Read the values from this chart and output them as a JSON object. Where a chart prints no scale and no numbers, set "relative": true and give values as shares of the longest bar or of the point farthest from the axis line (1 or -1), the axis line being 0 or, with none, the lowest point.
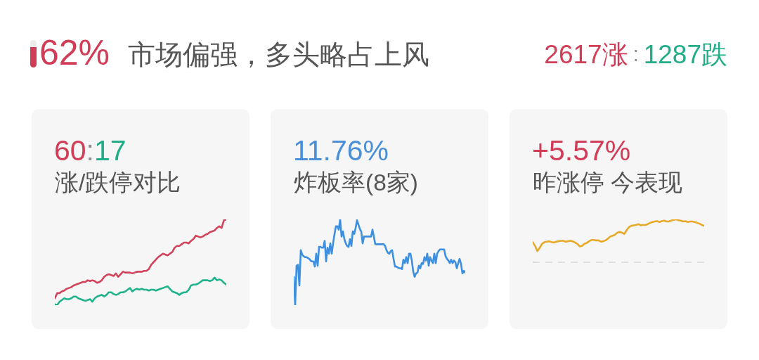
{
  "chart_data": [
    {
      "type": "other",
      "title": "市场偏强，多头略占上风",
      "annotations": [
        "62%",
        "2617涨",
        ":",
        "1287跌"
      ]
    },
    {
      "type": "line",
      "title": "涨/跌停对比",
      "annotations": [
        "60",
        ":",
        "17"
      ],
      "relative": true,
      "categories": [
        null,
        null,
        null,
        null,
        null,
        null,
        null,
        null,
        null,
        null,
        null,
        null,
        null,
        null,
        null,
        null,
        null,
        null,
        null,
        null,
        null,
        null,
        null,
        null,
        null,
        null,
        null,
        null,
        null,
        null,
        null,
        null,
        null,
        null,
        null,
        null,
        null,
        null,
        null,
        null,
        null,
        null,
        null,
        null,
        null,
        null,
        null,
        null,
        null,
        null,
        null,
        null,
        null,
        null,
        null,
        null,
        null,
        null,
        null,
        null,
        null,
        null,
        null,
        null,
        null,
        null,
        null,
        null,
        null,
        null,
        null,
        null,
        null,
        null
      ],
      "series": [
        {
          "color": "#d2435c",
          "values": [
            0.08,
            0.14,
            0.14,
            0.16,
            0.17,
            0.19,
            0.2,
            0.21,
            0.23,
            0.24,
            0.25,
            0.26,
            0.27,
            0.27,
            0.29,
            0.28,
            0.29,
            0.28,
            0.26,
            0.27,
            0.29,
            0.33,
            0.35,
            0.36,
            0.35,
            0.34,
            0.37,
            0.33,
            0.36,
            0.39,
            0.38,
            0.38,
            0.38,
            0.37,
            0.38,
            0.39,
            0.39,
            0.39,
            0.4,
            0.4,
            0.42,
            0.47,
            0.5,
            0.53,
            0.56,
            0.58,
            0.6,
            0.59,
            0.58,
            0.6,
            0.62,
            0.67,
            0.69,
            0.69,
            0.71,
            0.73,
            0.73,
            0.72,
            0.75,
            0.77,
            0.81,
            0.8,
            0.79,
            0.8,
            0.82,
            0.83,
            0.85,
            0.86,
            0.87,
            0.9,
            0.92,
            0.9,
            0.99,
            1.0
          ]
        },
        {
          "color": "#1fb28b",
          "values": [
            0.01,
            0.0,
            0.04,
            0.06,
            0.08,
            0.07,
            0.07,
            0.08,
            0.1,
            0.1,
            0.08,
            0.07,
            0.06,
            0.05,
            0.06,
            0.07,
            0.04,
            0.08,
            0.1,
            0.11,
            0.12,
            0.1,
            0.12,
            0.15,
            0.15,
            0.13,
            0.12,
            0.13,
            0.15,
            0.15,
            0.16,
            0.18,
            0.2,
            0.16,
            0.18,
            0.19,
            0.18,
            0.19,
            0.18,
            0.18,
            0.17,
            0.18,
            0.18,
            0.17,
            0.18,
            0.19,
            0.2,
            0.21,
            0.22,
            0.19,
            0.16,
            0.15,
            0.14,
            0.12,
            0.14,
            0.15,
            0.15,
            0.18,
            0.23,
            0.24,
            0.24,
            0.25,
            0.27,
            0.29,
            0.29,
            0.29,
            0.28,
            0.29,
            0.32,
            0.29,
            0.3,
            0.29,
            0.26,
            0.24
          ]
        }
      ]
    },
    {
      "type": "line",
      "title": "炸板率(8家)",
      "annotations": [
        "11.76%"
      ],
      "relative": true,
      "categories": [
        null,
        null,
        null,
        null,
        null,
        null,
        null,
        null,
        null,
        null,
        null,
        null,
        null,
        null,
        null,
        null,
        null,
        null,
        null,
        null,
        null,
        null,
        null,
        null,
        null,
        null,
        null,
        null,
        null,
        null,
        null,
        null,
        null,
        null,
        null,
        null,
        null,
        null,
        null,
        null,
        null,
        null,
        null,
        null,
        null,
        null,
        null,
        null,
        null,
        null,
        null,
        null,
        null,
        null,
        null,
        null,
        null,
        null,
        null,
        null,
        null,
        null,
        null,
        null,
        null,
        null,
        null,
        null,
        null,
        null,
        null,
        null,
        null,
        null,
        null,
        null,
        null,
        null,
        null,
        null,
        null,
        null,
        null,
        null,
        null,
        null,
        null,
        null,
        null,
        null,
        null,
        null,
        null,
        null,
        null,
        null,
        null,
        null,
        null,
        null,
        null,
        null,
        null,
        null,
        null,
        null,
        null,
        null,
        null,
        null,
        null,
        null,
        null,
        null,
        null,
        null,
        null,
        null,
        null,
        null,
        null,
        null,
        null
      ],
      "series": [
        {
          "color": "#3d8fe0",
          "values": [
            0.33,
            0.0,
            0.46,
            0.47,
            0.23,
            0.64,
            0.59,
            0.57,
            0.56,
            0.56,
            0.55,
            0.54,
            0.52,
            0.51,
            0.51,
            0.45,
            0.6,
            0.46,
            0.68,
            0.68,
            0.67,
            0.67,
            0.75,
            0.51,
            0.67,
            0.6,
            0.72,
            0.6,
            0.72,
            0.83,
            0.92,
            0.92,
            0.88,
            1.0,
            0.8,
            0.86,
            0.77,
            0.72,
            0.69,
            0.68,
            0.77,
            0.69,
            0.86,
            0.83,
            0.9,
            0.99,
            0.94,
            0.89,
            0.86,
            0.72,
            0.8,
            0.8,
            0.8,
            0.8,
            0.8,
            0.8,
            0.88,
            0.8,
            0.71,
            0.71,
            0.71,
            0.71,
            0.71,
            0.71,
            0.71,
            0.69,
            0.64,
            0.61,
            0.6,
            0.63,
            0.64,
            0.54,
            0.45,
            0.45,
            0.44,
            0.43,
            0.43,
            0.42,
            0.53,
            0.49,
            0.56,
            0.49,
            0.6,
            0.6,
            0.52,
            0.39,
            0.33,
            0.37,
            0.38,
            0.46,
            0.43,
            0.49,
            0.48,
            0.56,
            0.52,
            0.6,
            0.46,
            0.56,
            0.52,
            0.49,
            0.6,
            0.49,
            0.6,
            0.63,
            0.65,
            0.65,
            0.65,
            0.65,
            0.57,
            0.54,
            0.52,
            0.49,
            0.53,
            0.49,
            0.52,
            0.5,
            0.43,
            0.49,
            0.54,
            0.48,
            0.37,
            0.4,
            0.38
          ]
        }
      ]
    },
    {
      "type": "line",
      "title": "昨涨停 今表现",
      "annotations": [
        "+5.57%"
      ],
      "relative": true,
      "categories": [
        null,
        null,
        null,
        null,
        null,
        null,
        null,
        null,
        null,
        null,
        null,
        null,
        null,
        null,
        null,
        null,
        null,
        null,
        null,
        null,
        null,
        null,
        null,
        null,
        null,
        null,
        null,
        null,
        null,
        null,
        null,
        null,
        null,
        null,
        null,
        null,
        null,
        null,
        null,
        null,
        null,
        null,
        null,
        null,
        null,
        null,
        null,
        null,
        null,
        null,
        null,
        null,
        null,
        null,
        null,
        null,
        null,
        null,
        null,
        null,
        null,
        null,
        null,
        null,
        null,
        null,
        null,
        null,
        null,
        null,
        null,
        null,
        null,
        null
      ],
      "series": [
        {
          "color": "#e6a928",
          "values": [
            0.47,
            0.38,
            0.26,
            0.34,
            0.43,
            0.47,
            0.48,
            0.49,
            0.47,
            0.46,
            0.48,
            0.49,
            0.5,
            0.5,
            0.48,
            0.49,
            0.5,
            0.49,
            0.46,
            0.43,
            0.37,
            0.38,
            0.43,
            0.45,
            0.49,
            0.52,
            0.52,
            0.51,
            0.51,
            0.48,
            0.49,
            0.51,
            0.55,
            0.6,
            0.62,
            0.64,
            0.69,
            0.71,
            0.69,
            0.66,
            0.75,
            0.82,
            0.85,
            0.86,
            0.87,
            0.89,
            0.86,
            0.87,
            0.87,
            0.89,
            0.92,
            0.94,
            0.95,
            0.96,
            0.94,
            0.96,
            0.97,
            0.95,
            0.95,
            0.97,
            0.99,
            1.0,
            0.98,
            0.97,
            0.95,
            0.96,
            0.94,
            0.95,
            0.95,
            0.94,
            0.92,
            0.9,
            0.87,
            0.85
          ]
        }
      ],
      "ref_lines": [
        {
          "axis": "y",
          "value": 0,
          "color": "#c9c9c9",
          "line_style": "dashed"
        }
      ]
    }
  ]
}
